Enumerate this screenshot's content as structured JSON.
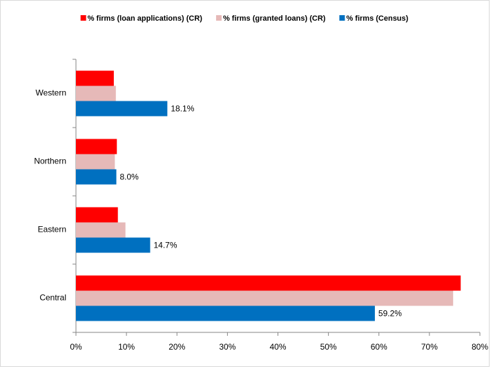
{
  "chart_data": {
    "type": "hbar",
    "categories": [
      "Central",
      "Eastern",
      "Northern",
      "Western"
    ],
    "series": [
      {
        "name": "% firms (loan applications) (CR)",
        "color": "#ff0000",
        "values": [
          76.2,
          8.3,
          8.1,
          7.5
        ]
      },
      {
        "name": "% firms (granted loans) (CR)",
        "color": "#e6b9b8",
        "values": [
          74.7,
          9.8,
          7.7,
          7.9
        ]
      },
      {
        "name": "% firms (Census)",
        "color": "#0070c0",
        "values": [
          59.2,
          14.7,
          8.0,
          18.1
        ],
        "value_labels": [
          "59.2%",
          "14.7%",
          "8.0%",
          "18.1%"
        ]
      }
    ],
    "xlim": [
      0,
      80
    ],
    "xticks": [
      {
        "value": 0,
        "label": "0%"
      },
      {
        "value": 10,
        "label": "10%"
      },
      {
        "value": 20,
        "label": "20%"
      },
      {
        "value": 30,
        "label": "30%"
      },
      {
        "value": 40,
        "label": "40%"
      },
      {
        "value": 50,
        "label": "50%"
      },
      {
        "value": 60,
        "label": "60%"
      },
      {
        "value": 70,
        "label": "70%"
      },
      {
        "value": 80,
        "label": "80%"
      }
    ],
    "legend": "top"
  }
}
